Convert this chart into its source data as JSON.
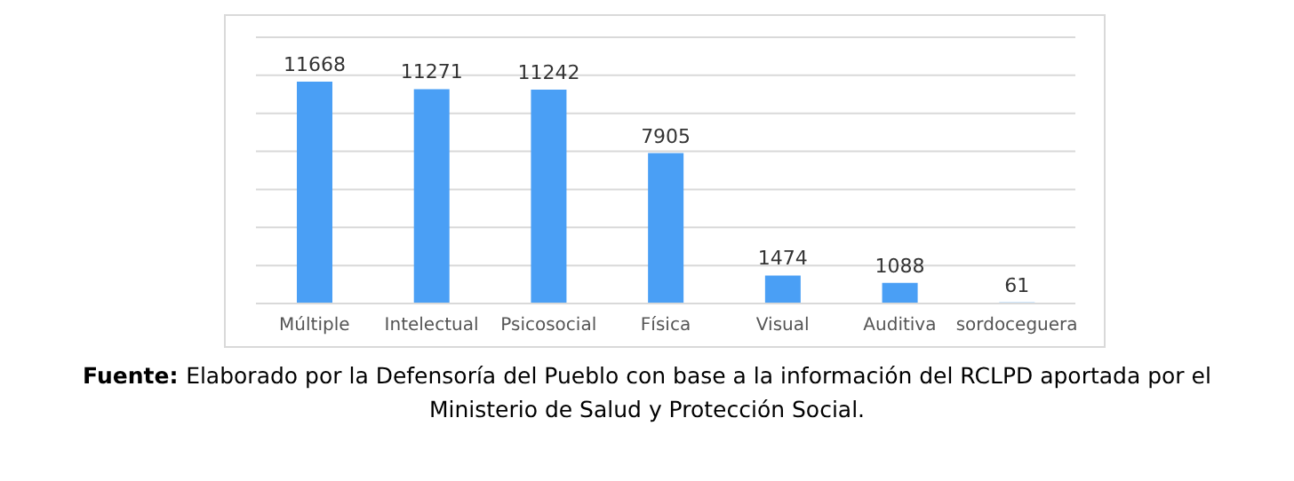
{
  "chart_data": {
    "type": "bar",
    "categories": [
      "Múltiple",
      "Intelectual",
      "Psicosocial",
      "Física",
      "Visual",
      "Auditiva",
      "sordoceguera"
    ],
    "values": [
      11668,
      11271,
      11242,
      7905,
      1474,
      1088,
      61
    ],
    "color": "#4a9ff5",
    "tick_labels": "x",
    "grid": "y",
    "data_labels": true,
    "annotations": [
      "Fuente:",
      "Elaborado por la Defensoría del Pueblo con base a la información del RCLPD aportada por el Ministerio de Salud y Protección Social."
    ]
  }
}
